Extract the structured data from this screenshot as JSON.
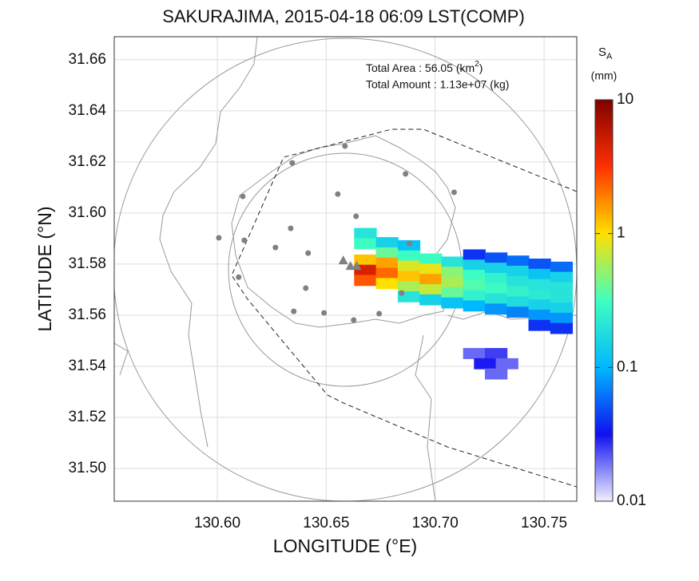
{
  "chart_data": {
    "type": "heatmap-map",
    "title": "SAKURAJIMA, 2015-04-18 06:09 LST(COMP)",
    "xlabel": "LONGITUDE (°E)",
    "ylabel": "LATITUDE (°N)",
    "annotations": [
      {
        "text": "Total Area   : 56.05 (km",
        "sup": "2",
        "tail": ")"
      },
      {
        "text": "Total Amount : 1.13e+07 (kg)"
      }
    ],
    "xlim": [
      130.5527,
      130.765
    ],
    "ylim": [
      31.4872,
      31.669
    ],
    "xticks": [
      {
        "value": 130.6,
        "label": "130.60"
      },
      130.65,
      {
        "value": 130.7,
        "label": "130.70"
      },
      130.75
    ],
    "yticks": [
      {
        "value": 31.5,
        "label": "31.50"
      },
      31.52,
      31.54,
      31.56,
      31.58,
      {
        "value": 31.6,
        "label": "31.60"
      },
      31.62,
      31.64,
      31.66
    ],
    "grid": true,
    "colorbar": {
      "label": "S",
      "label_sub": "A",
      "unit": "(mm)",
      "log": true,
      "lim": [
        0.01,
        10
      ],
      "ticks": [
        0.01,
        0.1,
        1,
        10
      ],
      "colors": [
        "#f0f0ff",
        "#1010f0",
        "#00b8ff",
        "#40ffc0",
        "#ffe000",
        "#ff3000",
        "#800000"
      ]
    },
    "cells": {
      "lon": [
        130.668,
        130.668,
        130.668,
        130.668,
        130.668,
        130.678,
        130.678,
        130.678,
        130.678,
        130.678,
        130.688,
        130.688,
        130.688,
        130.688,
        130.688,
        130.688,
        130.698,
        130.698,
        130.698,
        130.698,
        130.698,
        130.708,
        130.708,
        130.708,
        130.708,
        130.708,
        130.718,
        130.718,
        130.718,
        130.718,
        130.718,
        130.718,
        130.728,
        130.728,
        130.728,
        130.728,
        130.728,
        130.728,
        130.738,
        130.738,
        130.738,
        130.738,
        130.738,
        130.738,
        130.748,
        130.748,
        130.748,
        130.748,
        130.748,
        130.748,
        130.748,
        130.758,
        130.758,
        130.758,
        130.758,
        130.758,
        130.758,
        130.758,
        130.718,
        130.728,
        130.723,
        130.733,
        130.728
      ],
      "lat": [
        31.592,
        31.588,
        31.5816,
        31.5776,
        31.5736,
        31.5884,
        31.5844,
        31.5804,
        31.5764,
        31.5724,
        31.5872,
        31.5832,
        31.5792,
        31.5752,
        31.5712,
        31.5672,
        31.582,
        31.578,
        31.574,
        31.57,
        31.566,
        31.5808,
        31.5768,
        31.5728,
        31.5688,
        31.5648,
        31.5836,
        31.5796,
        31.5756,
        31.5716,
        31.5676,
        31.5636,
        31.5824,
        31.5784,
        31.5744,
        31.5704,
        31.5664,
        31.5624,
        31.5812,
        31.5772,
        31.5732,
        31.5692,
        31.5652,
        31.5612,
        31.58,
        31.576,
        31.572,
        31.568,
        31.564,
        31.56,
        31.556,
        31.5788,
        31.5748,
        31.5708,
        31.5668,
        31.5628,
        31.5588,
        31.5548,
        31.545,
        31.545,
        31.541,
        31.541,
        31.537
      ],
      "values": [
        0.2,
        0.3,
        1.2,
        4.5,
        2.5,
        0.15,
        0.4,
        1.5,
        2.2,
        1.0,
        0.12,
        0.3,
        0.8,
        1.2,
        0.6,
        0.2,
        0.3,
        0.9,
        1.5,
        0.7,
        0.15,
        0.2,
        0.5,
        0.6,
        0.4,
        0.12,
        0.04,
        0.15,
        0.3,
        0.35,
        0.25,
        0.1,
        0.05,
        0.15,
        0.25,
        0.3,
        0.2,
        0.08,
        0.06,
        0.15,
        0.2,
        0.25,
        0.18,
        0.07,
        0.05,
        0.12,
        0.2,
        0.22,
        0.15,
        0.08,
        0.04,
        0.06,
        0.15,
        0.2,
        0.2,
        0.15,
        0.08,
        0.04,
        0.02,
        0.025,
        0.03,
        0.02,
        0.02
      ]
    },
    "stations": {
      "lon": [
        130.6586,
        130.6344,
        130.6864,
        130.6117,
        130.6553,
        130.7087,
        130.6637,
        130.6007,
        130.6124,
        130.6882,
        130.6267,
        130.6337,
        130.6417,
        130.6098,
        130.6406,
        130.6351,
        130.649,
        130.6626,
        130.6743,
        130.6846
      ],
      "lat": [
        31.6262,
        31.6196,
        31.6153,
        31.6065,
        31.6074,
        31.6081,
        31.5987,
        31.5903,
        31.5893,
        31.5881,
        31.5865,
        31.594,
        31.5843,
        31.5749,
        31.5706,
        31.5615,
        31.5609,
        31.5581,
        31.5606,
        31.5687
      ],
      "color": "#808080"
    },
    "vents": {
      "lon": [
        130.6578,
        130.6611,
        130.664
      ],
      "lat": [
        31.5815,
        31.5793,
        31.5793
      ],
      "color": "#808080"
    }
  }
}
